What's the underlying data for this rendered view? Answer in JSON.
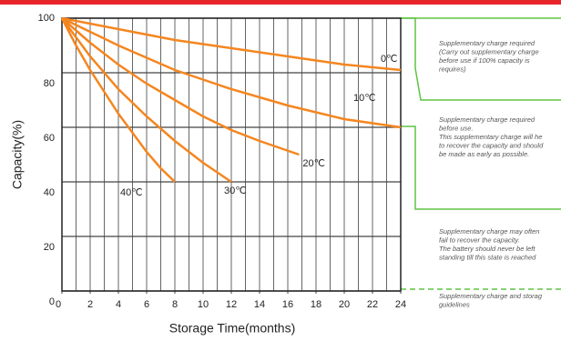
{
  "chart_data": {
    "type": "line",
    "y_label": "Capacity(%)",
    "x_label": "Storage Time(months)",
    "xlim": [
      0,
      24
    ],
    "xticks": [
      0,
      2,
      4,
      6,
      8,
      10,
      12,
      14,
      16,
      18,
      20,
      22,
      24
    ],
    "ylim": [
      0,
      100
    ],
    "yticks": [
      0,
      20,
      40,
      60,
      80,
      100
    ],
    "grid": true,
    "series": [
      {
        "name": "0℃",
        "color": "#f5861f",
        "x": [
          0,
          4,
          8,
          12,
          16,
          20,
          24
        ],
        "values": [
          100,
          96,
          92,
          89,
          86,
          83,
          81
        ]
      },
      {
        "name": "10℃",
        "color": "#f5861f",
        "x": [
          0,
          4,
          8,
          12,
          16,
          20,
          24
        ],
        "values": [
          100,
          90,
          81,
          74,
          68,
          63,
          60
        ]
      },
      {
        "name": "20℃",
        "color": "#f5861f",
        "x": [
          0,
          2,
          4,
          6,
          8,
          10,
          12,
          14,
          16.8
        ],
        "values": [
          100,
          91,
          83,
          76,
          70,
          64,
          59,
          55,
          50
        ]
      },
      {
        "name": "30℃",
        "color": "#f5861f",
        "x": [
          0,
          2,
          4,
          6,
          8,
          10,
          12
        ],
        "values": [
          100,
          86,
          74,
          64,
          55,
          47,
          40
        ]
      },
      {
        "name": "40℃",
        "color": "#f5861f",
        "x": [
          0,
          1,
          2,
          3,
          4,
          5,
          6,
          7,
          8
        ],
        "values": [
          100,
          90,
          81,
          73,
          65,
          58,
          51,
          45,
          40
        ]
      }
    ],
    "annotations": [
      [
        "Supplementary charge required",
        "(Carry out supplementary charge",
        "before use if 100% capacity is",
        "requires)"
      ],
      [
        "Supplementary charge required",
        "before use.",
        "This supplementary charge will he",
        "to recover the capacity and should",
        "be made  as early as possible."
      ],
      [
        "Supplementary charge may often",
        "fail to recover the capacity.",
        "The battery should never be left",
        "standing till this state is reached"
      ],
      [
        "Supplementary charge and storag",
        "guidelines"
      ]
    ]
  }
}
